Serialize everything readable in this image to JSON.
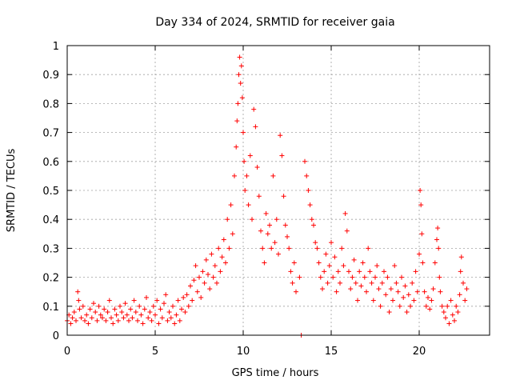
{
  "chart_data": {
    "type": "scatter",
    "title": "Day 334 of 2024, SRMTID for receiver gaia",
    "xlabel": "GPS time / hours",
    "ylabel": "SRMTID / TECUs",
    "xlim": [
      0,
      24
    ],
    "ylim": [
      0,
      1
    ],
    "xticks": [
      0,
      5,
      10,
      15,
      20
    ],
    "xtick_labels": [
      "0",
      "5",
      "10",
      "15",
      "20"
    ],
    "yticks": [
      0,
      0.1,
      0.2,
      0.3,
      0.4,
      0.5,
      0.6,
      0.7,
      0.8,
      0.9,
      1
    ],
    "ytick_labels": [
      "0",
      "0.1",
      "0.2",
      "0.3",
      "0.4",
      "0.5",
      "0.6",
      "0.7",
      "0.8",
      "0.9",
      "1"
    ],
    "grid": true,
    "marker": "+",
    "color": "#ff0000",
    "series": [
      {
        "name": "SRMTID",
        "points": [
          [
            0.0,
            0.05
          ],
          [
            0.1,
            0.07
          ],
          [
            0.2,
            0.04
          ],
          [
            0.3,
            0.06
          ],
          [
            0.4,
            0.08
          ],
          [
            0.5,
            0.05
          ],
          [
            0.6,
            0.15
          ],
          [
            0.65,
            0.12
          ],
          [
            0.7,
            0.09
          ],
          [
            0.8,
            0.06
          ],
          [
            0.9,
            0.1
          ],
          [
            1.0,
            0.05
          ],
          [
            1.1,
            0.07
          ],
          [
            1.2,
            0.04
          ],
          [
            1.3,
            0.09
          ],
          [
            1.4,
            0.06
          ],
          [
            1.5,
            0.11
          ],
          [
            1.6,
            0.08
          ],
          [
            1.7,
            0.05
          ],
          [
            1.8,
            0.1
          ],
          [
            1.9,
            0.07
          ],
          [
            2.0,
            0.06
          ],
          [
            2.1,
            0.09
          ],
          [
            2.2,
            0.05
          ],
          [
            2.3,
            0.08
          ],
          [
            2.4,
            0.12
          ],
          [
            2.5,
            0.06
          ],
          [
            2.6,
            0.04
          ],
          [
            2.7,
            0.09
          ],
          [
            2.8,
            0.07
          ],
          [
            2.9,
            0.05
          ],
          [
            3.0,
            0.1
          ],
          [
            3.1,
            0.08
          ],
          [
            3.2,
            0.06
          ],
          [
            3.3,
            0.11
          ],
          [
            3.4,
            0.07
          ],
          [
            3.5,
            0.05
          ],
          [
            3.6,
            0.09
          ],
          [
            3.7,
            0.06
          ],
          [
            3.8,
            0.12
          ],
          [
            3.9,
            0.08
          ],
          [
            4.0,
            0.05
          ],
          [
            4.1,
            0.1
          ],
          [
            4.2,
            0.07
          ],
          [
            4.3,
            0.04
          ],
          [
            4.4,
            0.09
          ],
          [
            4.5,
            0.13
          ],
          [
            4.6,
            0.06
          ],
          [
            4.7,
            0.08
          ],
          [
            4.8,
            0.05
          ],
          [
            4.9,
            0.1
          ],
          [
            5.0,
            0.07
          ],
          [
            5.1,
            0.12
          ],
          [
            5.2,
            0.04
          ],
          [
            5.3,
            0.09
          ],
          [
            5.4,
            0.06
          ],
          [
            5.5,
            0.11
          ],
          [
            5.6,
            0.14
          ],
          [
            5.7,
            0.05
          ],
          [
            5.8,
            0.08
          ],
          [
            5.9,
            0.06
          ],
          [
            6.0,
            0.1
          ],
          [
            6.1,
            0.04
          ],
          [
            6.2,
            0.07
          ],
          [
            6.3,
            0.12
          ],
          [
            6.4,
            0.05
          ],
          [
            6.5,
            0.09
          ],
          [
            6.6,
            0.13
          ],
          [
            6.7,
            0.08
          ],
          [
            6.8,
            0.14
          ],
          [
            6.9,
            0.1
          ],
          [
            7.0,
            0.17
          ],
          [
            7.1,
            0.12
          ],
          [
            7.2,
            0.19
          ],
          [
            7.3,
            0.24
          ],
          [
            7.4,
            0.15
          ],
          [
            7.5,
            0.2
          ],
          [
            7.6,
            0.13
          ],
          [
            7.7,
            0.22
          ],
          [
            7.8,
            0.18
          ],
          [
            7.9,
            0.26
          ],
          [
            8.0,
            0.21
          ],
          [
            8.1,
            0.16
          ],
          [
            8.2,
            0.28
          ],
          [
            8.3,
            0.2
          ],
          [
            8.4,
            0.24
          ],
          [
            8.5,
            0.18
          ],
          [
            8.6,
            0.3
          ],
          [
            8.7,
            0.22
          ],
          [
            8.8,
            0.27
          ],
          [
            8.9,
            0.33
          ],
          [
            9.0,
            0.25
          ],
          [
            9.1,
            0.4
          ],
          [
            9.2,
            0.3
          ],
          [
            9.3,
            0.45
          ],
          [
            9.4,
            0.35
          ],
          [
            9.5,
            0.55
          ],
          [
            9.6,
            0.65
          ],
          [
            9.65,
            0.74
          ],
          [
            9.7,
            0.8
          ],
          [
            9.75,
            0.9
          ],
          [
            9.8,
            0.96
          ],
          [
            9.85,
            0.87
          ],
          [
            9.9,
            0.93
          ],
          [
            9.95,
            0.82
          ],
          [
            10.0,
            0.7
          ],
          [
            10.05,
            0.6
          ],
          [
            10.1,
            0.5
          ],
          [
            10.2,
            0.55
          ],
          [
            10.3,
            0.45
          ],
          [
            10.4,
            0.62
          ],
          [
            10.5,
            0.4
          ],
          [
            10.6,
            0.78
          ],
          [
            10.7,
            0.72
          ],
          [
            10.8,
            0.58
          ],
          [
            10.9,
            0.48
          ],
          [
            11.0,
            0.36
          ],
          [
            11.1,
            0.3
          ],
          [
            11.2,
            0.25
          ],
          [
            11.3,
            0.42
          ],
          [
            11.4,
            0.35
          ],
          [
            11.5,
            0.38
          ],
          [
            11.6,
            0.3
          ],
          [
            11.7,
            0.55
          ],
          [
            11.8,
            0.32
          ],
          [
            11.9,
            0.4
          ],
          [
            12.0,
            0.28
          ],
          [
            12.1,
            0.69
          ],
          [
            12.2,
            0.62
          ],
          [
            12.3,
            0.48
          ],
          [
            12.4,
            0.38
          ],
          [
            12.5,
            0.34
          ],
          [
            12.6,
            0.3
          ],
          [
            12.7,
            0.22
          ],
          [
            12.8,
            0.18
          ],
          [
            12.9,
            0.25
          ],
          [
            13.0,
            0.15
          ],
          [
            13.2,
            0.2
          ],
          [
            13.3,
            0.0
          ],
          [
            13.5,
            0.6
          ],
          [
            13.6,
            0.55
          ],
          [
            13.7,
            0.5
          ],
          [
            13.8,
            0.45
          ],
          [
            13.9,
            0.4
          ],
          [
            14.0,
            0.38
          ],
          [
            14.1,
            0.32
          ],
          [
            14.2,
            0.3
          ],
          [
            14.3,
            0.25
          ],
          [
            14.4,
            0.2
          ],
          [
            14.5,
            0.16
          ],
          [
            14.6,
            0.22
          ],
          [
            14.7,
            0.28
          ],
          [
            14.8,
            0.18
          ],
          [
            14.9,
            0.24
          ],
          [
            15.0,
            0.32
          ],
          [
            15.1,
            0.2
          ],
          [
            15.2,
            0.27
          ],
          [
            15.3,
            0.15
          ],
          [
            15.4,
            0.22
          ],
          [
            15.5,
            0.18
          ],
          [
            15.6,
            0.3
          ],
          [
            15.7,
            0.24
          ],
          [
            15.8,
            0.42
          ],
          [
            15.9,
            0.36
          ],
          [
            16.0,
            0.22
          ],
          [
            16.1,
            0.16
          ],
          [
            16.2,
            0.2
          ],
          [
            16.3,
            0.26
          ],
          [
            16.4,
            0.18
          ],
          [
            16.5,
            0.12
          ],
          [
            16.6,
            0.22
          ],
          [
            16.7,
            0.17
          ],
          [
            16.8,
            0.25
          ],
          [
            16.9,
            0.2
          ],
          [
            17.0,
            0.15
          ],
          [
            17.1,
            0.3
          ],
          [
            17.2,
            0.22
          ],
          [
            17.3,
            0.18
          ],
          [
            17.4,
            0.12
          ],
          [
            17.5,
            0.2
          ],
          [
            17.6,
            0.24
          ],
          [
            17.7,
            0.16
          ],
          [
            17.8,
            0.1
          ],
          [
            17.9,
            0.18
          ],
          [
            18.0,
            0.22
          ],
          [
            18.1,
            0.14
          ],
          [
            18.2,
            0.2
          ],
          [
            18.3,
            0.08
          ],
          [
            18.4,
            0.16
          ],
          [
            18.5,
            0.12
          ],
          [
            18.6,
            0.24
          ],
          [
            18.7,
            0.18
          ],
          [
            18.8,
            0.15
          ],
          [
            18.9,
            0.1
          ],
          [
            19.0,
            0.2
          ],
          [
            19.1,
            0.13
          ],
          [
            19.2,
            0.17
          ],
          [
            19.3,
            0.08
          ],
          [
            19.4,
            0.14
          ],
          [
            19.5,
            0.1
          ],
          [
            19.6,
            0.18
          ],
          [
            19.7,
            0.12
          ],
          [
            19.8,
            0.22
          ],
          [
            19.9,
            0.15
          ],
          [
            20.0,
            0.28
          ],
          [
            20.05,
            0.5
          ],
          [
            20.1,
            0.45
          ],
          [
            20.15,
            0.35
          ],
          [
            20.2,
            0.25
          ],
          [
            20.3,
            0.15
          ],
          [
            20.4,
            0.1
          ],
          [
            20.5,
            0.13
          ],
          [
            20.6,
            0.09
          ],
          [
            20.7,
            0.12
          ],
          [
            20.8,
            0.16
          ],
          [
            20.9,
            0.25
          ],
          [
            21.0,
            0.33
          ],
          [
            21.05,
            0.37
          ],
          [
            21.1,
            0.3
          ],
          [
            21.15,
            0.2
          ],
          [
            21.2,
            0.15
          ],
          [
            21.3,
            0.1
          ],
          [
            21.4,
            0.08
          ],
          [
            21.5,
            0.06
          ],
          [
            21.6,
            0.1
          ],
          [
            21.7,
            0.04
          ],
          [
            21.8,
            0.12
          ],
          [
            21.9,
            0.07
          ],
          [
            22.0,
            0.05
          ],
          [
            22.1,
            0.1
          ],
          [
            22.2,
            0.08
          ],
          [
            22.3,
            0.14
          ],
          [
            22.35,
            0.22
          ],
          [
            22.4,
            0.27
          ],
          [
            22.5,
            0.18
          ],
          [
            22.6,
            0.12
          ],
          [
            22.7,
            0.16
          ]
        ]
      }
    ]
  }
}
